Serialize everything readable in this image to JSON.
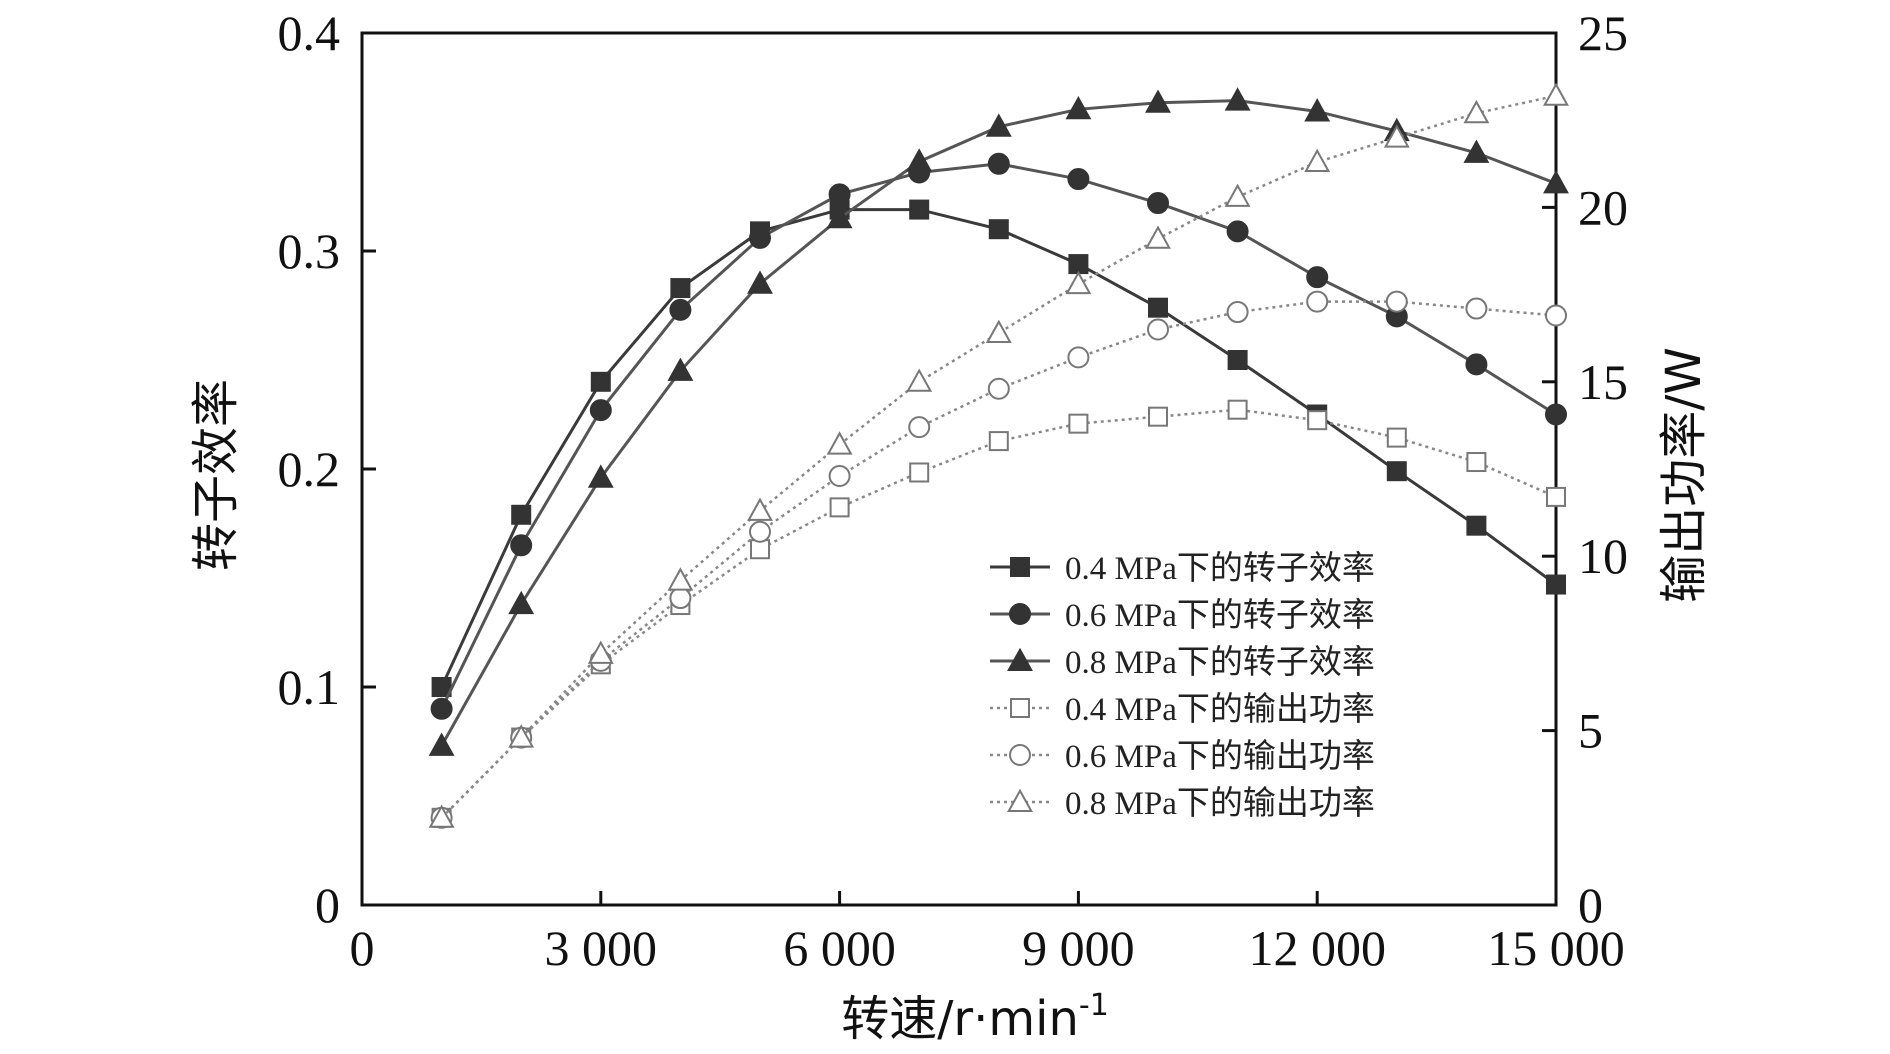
{
  "chart_data": {
    "type": "line",
    "xlabel": "转速/r·min",
    "xlabel_sup": "-1",
    "ylabel": "转子效率",
    "y2label": "输出功率/W",
    "xlim": [
      0,
      15000
    ],
    "ylim": [
      0,
      0.4
    ],
    "y2lim": [
      0,
      25
    ],
    "x_ticks": [
      0,
      3000,
      6000,
      9000,
      12000,
      15000
    ],
    "x_tick_labels": [
      "0",
      "3 000",
      "6 000",
      "9 000",
      "12 000",
      "15 000"
    ],
    "y_ticks": [
      0,
      0.1,
      0.2,
      0.3,
      0.4
    ],
    "y_tick_labels": [
      "0",
      "0.1",
      "0.2",
      "0.3",
      "0.4"
    ],
    "y2_ticks": [
      0,
      5,
      10,
      15,
      20,
      25
    ],
    "y2_tick_labels": [
      "0",
      "5",
      "10",
      "15",
      "20",
      "25"
    ],
    "grid": false,
    "legend_position": "lower-right",
    "x": [
      1000,
      2000,
      3000,
      4000,
      5000,
      6000,
      7000,
      8000,
      9000,
      10000,
      11000,
      12000,
      13000,
      14000,
      15000
    ],
    "series": [
      {
        "name": "0.4 MPa下的转子效率",
        "axis": "left",
        "marker": "square",
        "filled": true,
        "line": "solid",
        "color": "#3a3a3a",
        "values": [
          0.1,
          0.179,
          0.24,
          0.283,
          0.309,
          0.319,
          0.319,
          0.31,
          0.294,
          0.274,
          0.25,
          0.225,
          0.199,
          0.174,
          0.147
        ]
      },
      {
        "name": "0.6 MPa下的转子效率",
        "axis": "left",
        "marker": "circle",
        "filled": true,
        "line": "solid",
        "color": "#555555",
        "values": [
          0.09,
          0.165,
          0.227,
          0.273,
          0.306,
          0.326,
          0.336,
          0.34,
          0.333,
          0.322,
          0.309,
          0.288,
          0.27,
          0.248,
          0.225
        ]
      },
      {
        "name": "0.8 MPa下的转子效率",
        "axis": "left",
        "marker": "triangle",
        "filled": true,
        "line": "solid",
        "color": "#555555",
        "values": [
          0.073,
          0.138,
          0.196,
          0.245,
          0.285,
          0.315,
          0.341,
          0.357,
          0.365,
          0.368,
          0.369,
          0.364,
          0.355,
          0.345,
          0.331
        ]
      },
      {
        "name": "0.4 MPa下的输出功率",
        "axis": "right",
        "marker": "square",
        "filled": false,
        "line": "dotted",
        "color": "#888888",
        "values": [
          2.5,
          4.8,
          6.9,
          8.6,
          10.2,
          11.4,
          12.4,
          13.3,
          13.8,
          14.0,
          14.2,
          13.9,
          13.4,
          12.7,
          11.7
        ]
      },
      {
        "name": "0.6 MPa下的输出功率",
        "axis": "right",
        "marker": "circle",
        "filled": false,
        "line": "dotted",
        "color": "#888888",
        "values": [
          2.5,
          4.8,
          7.0,
          8.8,
          10.7,
          12.3,
          13.7,
          14.8,
          15.7,
          16.5,
          17.0,
          17.3,
          17.3,
          17.1,
          16.9
        ]
      },
      {
        "name": "0.8 MPa下的输出功率",
        "axis": "right",
        "marker": "triangle",
        "filled": false,
        "line": "dotted",
        "color": "#888888",
        "values": [
          2.5,
          4.8,
          7.2,
          9.3,
          11.3,
          13.2,
          15.0,
          16.4,
          17.8,
          19.1,
          20.3,
          21.3,
          22.0,
          22.7,
          23.2
        ]
      }
    ]
  }
}
